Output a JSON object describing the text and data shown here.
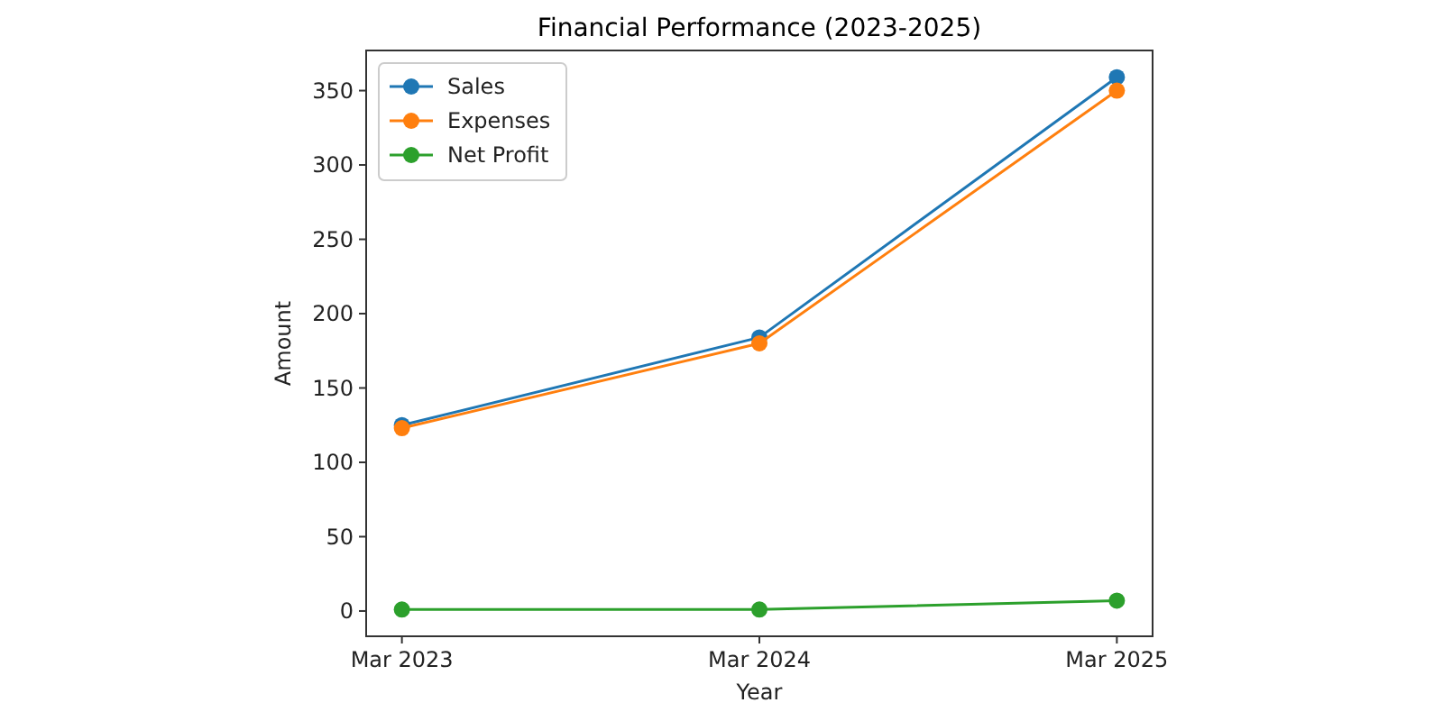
{
  "chart_data": {
    "type": "line",
    "title": "Financial Performance (2023-2025)",
    "xlabel": "Year",
    "ylabel": "Amount",
    "categories": [
      "Mar 2023",
      "Mar 2024",
      "Mar 2025"
    ],
    "series": [
      {
        "name": "Sales",
        "color": "#1f77b4",
        "values": [
          125,
          184,
          359
        ]
      },
      {
        "name": "Expenses",
        "color": "#ff7f0e",
        "values": [
          123,
          180,
          350
        ]
      },
      {
        "name": "Net Profit",
        "color": "#2ca02c",
        "values": [
          1,
          1,
          7
        ]
      }
    ],
    "ylim": [
      -17,
      377
    ],
    "yticks": [
      0,
      50,
      100,
      150,
      200,
      250,
      300,
      350
    ],
    "legend": "top left",
    "marker": "circle",
    "line_style": "solid",
    "grid": false
  }
}
